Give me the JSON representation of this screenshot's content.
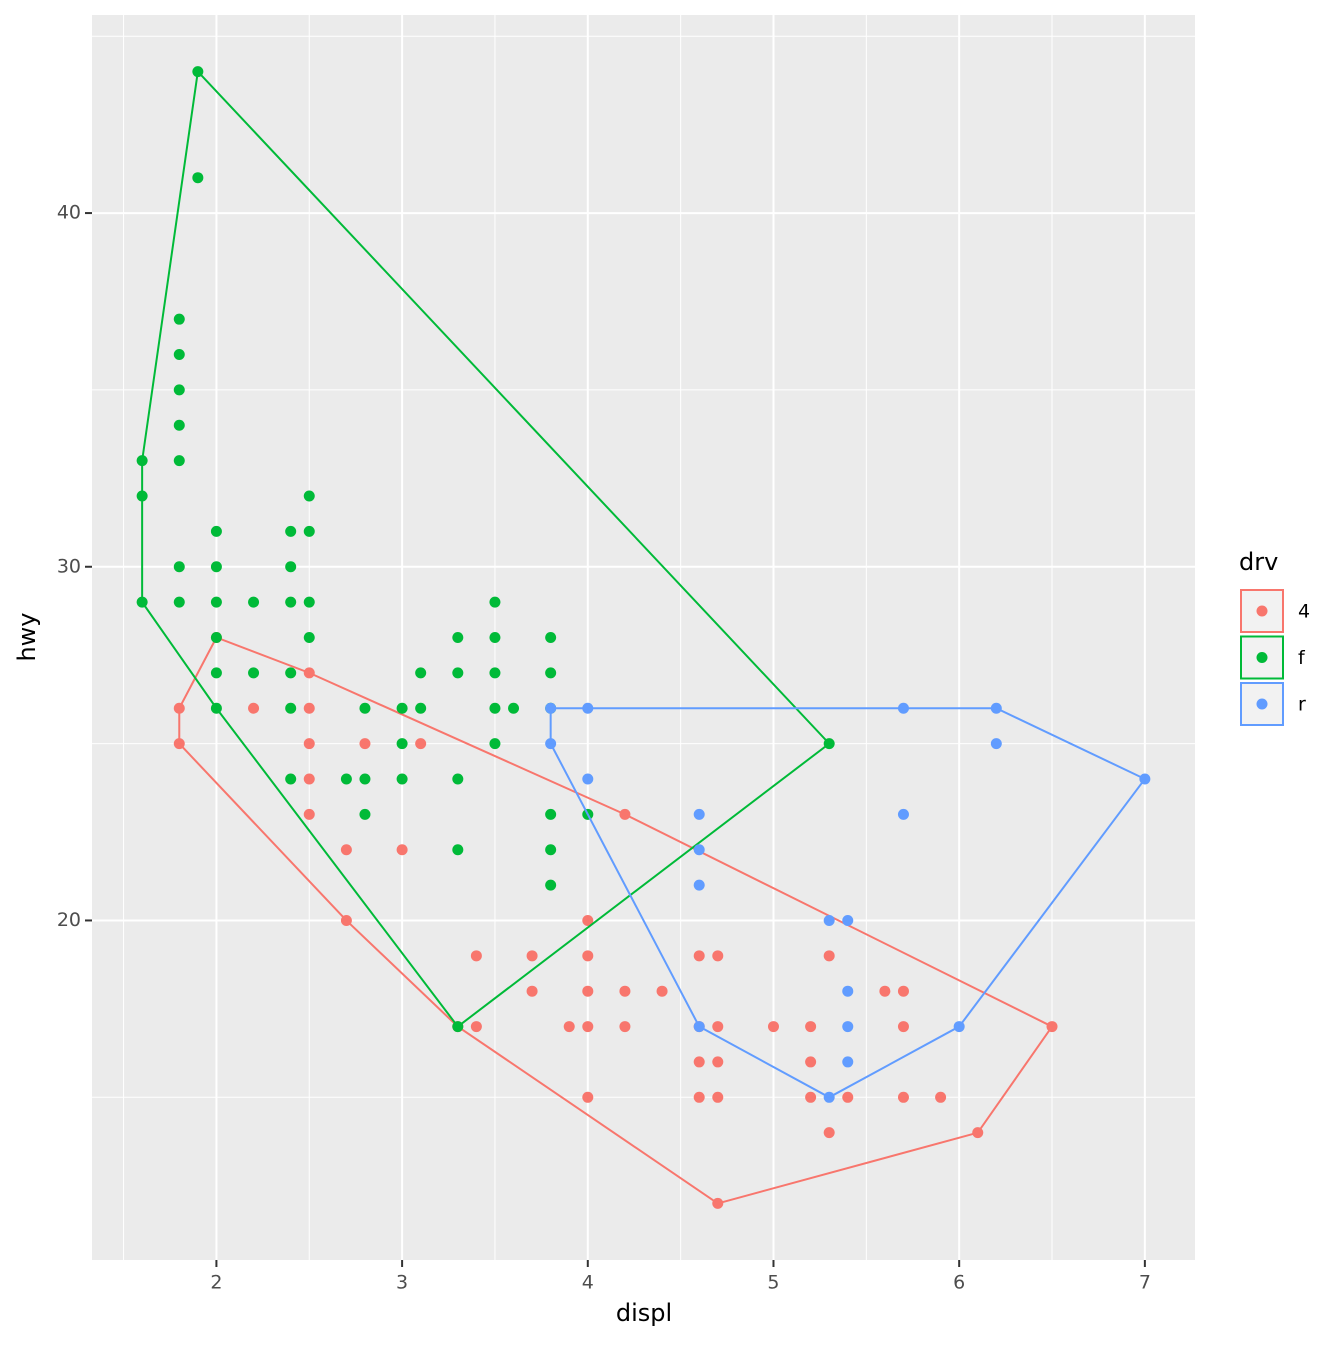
{
  "chart_data": {
    "type": "scatter",
    "x_label": "displ",
    "y_label": "hwy",
    "legend_title": "drv",
    "legend_position": "right",
    "grid": true,
    "hull": true,
    "xlim": [
      1.33,
      7.27
    ],
    "ylim": [
      10.4,
      45.6
    ],
    "xticks": [
      2,
      3,
      4,
      5,
      6,
      7
    ],
    "yticks": [
      20,
      30,
      40
    ],
    "x_minor_ticks": [
      1.5,
      2.5,
      3.5,
      4.5,
      5.5,
      6.5
    ],
    "y_minor_ticks": [
      15,
      25,
      35,
      45
    ],
    "series": [
      {
        "name": "4",
        "color": "#F8766D",
        "x": [
          1.8,
          1.8,
          2.0,
          2.2,
          2.5,
          2.5,
          2.5,
          2.5,
          2.5,
          2.7,
          2.7,
          2.8,
          3.0,
          3.1,
          3.3,
          3.4,
          3.4,
          3.7,
          3.7,
          3.9,
          4.0,
          4.0,
          4.0,
          4.0,
          4.0,
          4.2,
          4.2,
          4.2,
          4.4,
          4.6,
          4.6,
          4.6,
          4.6,
          4.7,
          4.7,
          4.7,
          4.7,
          4.7,
          5.0,
          5.2,
          5.2,
          5.2,
          5.3,
          5.3,
          5.4,
          5.6,
          5.7,
          5.7,
          5.7,
          5.9,
          6.1,
          6.5
        ],
        "values": [
          26,
          25,
          28,
          26,
          27,
          26,
          25,
          24,
          23,
          22,
          20,
          25,
          22,
          25,
          17,
          19,
          17,
          19,
          18,
          17,
          20,
          19,
          18,
          17,
          15,
          23,
          18,
          17,
          18,
          19,
          17,
          16,
          15,
          19,
          17,
          16,
          15,
          12,
          17,
          17,
          16,
          15,
          19,
          14,
          15,
          18,
          18,
          17,
          15,
          15,
          14,
          17
        ]
      },
      {
        "name": "f",
        "color": "#00BA38",
        "x": [
          1.9,
          1.9,
          1.8,
          1.8,
          1.8,
          1.8,
          1.8,
          1.6,
          1.6,
          1.6,
          1.8,
          1.8,
          2.0,
          2.0,
          2.0,
          2.0,
          2.0,
          2.0,
          2.2,
          2.2,
          2.4,
          2.4,
          2.4,
          2.4,
          2.4,
          2.4,
          2.5,
          2.5,
          2.5,
          2.5,
          2.7,
          2.8,
          2.8,
          2.8,
          3.0,
          3.0,
          3.0,
          3.1,
          3.1,
          3.3,
          3.3,
          3.3,
          3.3,
          3.3,
          3.5,
          3.5,
          3.5,
          3.5,
          3.5,
          3.6,
          3.8,
          3.8,
          3.8,
          3.8,
          3.8,
          3.8,
          4.0,
          5.3
        ],
        "values": [
          44,
          41,
          37,
          36,
          35,
          34,
          33,
          33,
          32,
          29,
          30,
          29,
          31,
          30,
          29,
          28,
          27,
          26,
          29,
          27,
          31,
          30,
          29,
          27,
          26,
          24,
          32,
          31,
          29,
          28,
          24,
          26,
          24,
          23,
          26,
          25,
          24,
          27,
          26,
          28,
          27,
          24,
          22,
          17,
          29,
          28,
          27,
          26,
          25,
          26,
          28,
          27,
          26,
          23,
          22,
          21,
          23,
          25
        ]
      },
      {
        "name": "r",
        "color": "#619CFF",
        "x": [
          3.8,
          3.8,
          4.0,
          4.0,
          4.6,
          4.6,
          4.6,
          4.6,
          5.3,
          5.3,
          5.4,
          5.4,
          5.4,
          5.4,
          5.7,
          5.7,
          6.0,
          6.2,
          6.2,
          7.0
        ],
        "values": [
          26,
          25,
          26,
          24,
          23,
          22,
          21,
          17,
          20,
          15,
          20,
          18,
          17,
          16,
          26,
          23,
          17,
          26,
          25,
          24
        ]
      }
    ]
  }
}
